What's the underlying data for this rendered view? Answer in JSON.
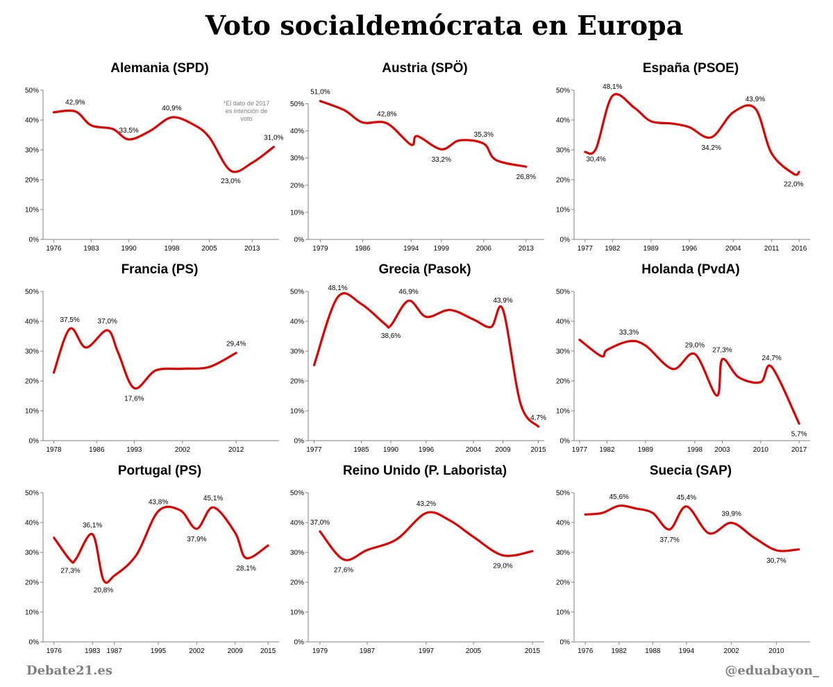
{
  "title": "Voto socialdemócrata en Europa",
  "footer": {
    "left": "Debate21.es",
    "right": "@eduabayon_"
  },
  "line_color": "#e00000",
  "chart_data": [
    {
      "type": "line",
      "title": "Alemania (SPD)",
      "ylim": [
        0,
        50
      ],
      "y_ticks": [
        "0%",
        "10%",
        "20%",
        "30%",
        "40%",
        "50%"
      ],
      "xlim": [
        1974,
        2018
      ],
      "x_ticks": [
        "1976",
        "1983",
        "1990",
        "1998",
        "2005",
        "2013"
      ],
      "x_tick_values": [
        1976,
        1983,
        1990,
        1998,
        2005,
        2013
      ],
      "x": [
        1976,
        1980,
        1983,
        1987,
        1990,
        1994,
        1998,
        2002,
        2005,
        2009,
        2013,
        2017
      ],
      "y": [
        42.6,
        42.9,
        38.2,
        37.0,
        33.5,
        36.4,
        40.9,
        38.5,
        34.2,
        23.0,
        25.7,
        31.0
      ],
      "labels": [
        {
          "idx": 1,
          "text": "42,9%",
          "pos": "above"
        },
        {
          "idx": 4,
          "text": "33,5%",
          "pos": "above"
        },
        {
          "idx": 6,
          "text": "40,9%",
          "pos": "above"
        },
        {
          "idx": 9,
          "text": "23,0%",
          "pos": "below"
        },
        {
          "idx": 11,
          "text": "31,0%",
          "pos": "above"
        }
      ],
      "note": [
        "*El dato de 2017",
        "es intención  de",
        "voto"
      ]
    },
    {
      "type": "line",
      "title": "Austria (SPÖ)",
      "ylim": [
        0,
        55
      ],
      "y_ticks": [
        "0%",
        "10%",
        "20%",
        "30%",
        "40%",
        "50%"
      ],
      "xlim": [
        1977,
        2016
      ],
      "x_ticks": [
        "1979",
        "1986",
        "1994",
        "1999",
        "2006",
        "2013"
      ],
      "x_tick_values": [
        1979,
        1986,
        1994,
        1999,
        2006,
        2013
      ],
      "x": [
        1979,
        1983,
        1986,
        1990,
        1994,
        1995,
        1999,
        2002,
        2006,
        2008,
        2013
      ],
      "y": [
        51.0,
        47.6,
        43.1,
        42.8,
        34.9,
        38.1,
        33.2,
        36.5,
        35.3,
        29.3,
        26.8
      ],
      "labels": [
        {
          "idx": 0,
          "text": "51,0%",
          "pos": "above"
        },
        {
          "idx": 3,
          "text": "42,8%",
          "pos": "above"
        },
        {
          "idx": 6,
          "text": "33,2%",
          "pos": "below"
        },
        {
          "idx": 8,
          "text": "35,3%",
          "pos": "above"
        },
        {
          "idx": 10,
          "text": "26,8%",
          "pos": "below"
        }
      ]
    },
    {
      "type": "line",
      "title": "España (PSOE)",
      "ylim": [
        0,
        50
      ],
      "y_ticks": [
        "0%",
        "10%",
        "20%",
        "30%",
        "40%",
        "50%"
      ],
      "xlim": [
        1975,
        2018
      ],
      "x_ticks": [
        "1977",
        "1982",
        "1989",
        "1996",
        "2004",
        "2011",
        "2016"
      ],
      "x_tick_values": [
        1977,
        1982,
        1989,
        1996,
        2004,
        2011,
        2016
      ],
      "x": [
        1977,
        1979,
        1982,
        1986,
        1989,
        1993,
        1996,
        2000,
        2004,
        2008,
        2011,
        2015,
        2016
      ],
      "y": [
        29.3,
        30.4,
        48.1,
        44.1,
        39.6,
        38.8,
        37.6,
        34.2,
        42.6,
        43.9,
        28.8,
        22.0,
        22.6
      ],
      "labels": [
        {
          "idx": 1,
          "text": "30,4%",
          "pos": "below"
        },
        {
          "idx": 2,
          "text": "48,1%",
          "pos": "above"
        },
        {
          "idx": 7,
          "text": "34,2%",
          "pos": "below"
        },
        {
          "idx": 9,
          "text": "43,9%",
          "pos": "above"
        },
        {
          "idx": 11,
          "text": "22,0%",
          "pos": "below"
        }
      ]
    },
    {
      "type": "line",
      "title": "Francia (PS)",
      "ylim": [
        0,
        50
      ],
      "y_ticks": [
        "0%",
        "10%",
        "20%",
        "30%",
        "40%",
        "50%"
      ],
      "xlim": [
        1976,
        2020
      ],
      "x_ticks": [
        "1978",
        "1986",
        "1993",
        "2002",
        "2012"
      ],
      "x_tick_values": [
        1978,
        1986,
        1993,
        2002,
        2012
      ],
      "x": [
        1978,
        1981,
        1984,
        1988,
        1990,
        1993,
        1997,
        2002,
        2007,
        2012
      ],
      "y": [
        22.8,
        37.5,
        31.2,
        37.0,
        29.5,
        17.6,
        23.5,
        24.1,
        24.7,
        29.4
      ],
      "labels": [
        {
          "idx": 1,
          "text": "37,5%",
          "pos": "above"
        },
        {
          "idx": 3,
          "text": "37,0%",
          "pos": "above"
        },
        {
          "idx": 5,
          "text": "17,6%",
          "pos": "below"
        },
        {
          "idx": 9,
          "text": "29,4%",
          "pos": "above"
        }
      ]
    },
    {
      "type": "line",
      "title": "Grecia (Pasok)",
      "ylim": [
        0,
        50
      ],
      "y_ticks": [
        "0%",
        "10%",
        "20%",
        "30%",
        "40%",
        "50%"
      ],
      "xlim": [
        1976,
        2016
      ],
      "x_ticks": [
        "1977",
        "1985",
        "1990",
        "1996",
        "2004",
        "2009",
        "2015"
      ],
      "x_tick_values": [
        1977,
        1985,
        1990,
        1996,
        2004,
        2009,
        2015
      ],
      "x": [
        1977,
        1981,
        1985,
        1989,
        1990,
        1993,
        1996,
        2000,
        2004,
        2007,
        2009,
        2012,
        2015
      ],
      "y": [
        25.3,
        48.1,
        45.8,
        39.1,
        38.6,
        46.9,
        41.5,
        43.8,
        40.6,
        38.1,
        43.9,
        12.3,
        4.7
      ],
      "labels": [
        {
          "idx": 1,
          "text": "48,1%",
          "pos": "above"
        },
        {
          "idx": 4,
          "text": "38,6%",
          "pos": "below"
        },
        {
          "idx": 5,
          "text": "46,9%",
          "pos": "above"
        },
        {
          "idx": 10,
          "text": "43,9%",
          "pos": "above"
        },
        {
          "idx": 12,
          "text": "4,7%",
          "pos": "above"
        }
      ]
    },
    {
      "type": "line",
      "title": "Holanda (PvdA)",
      "ylim": [
        0,
        50
      ],
      "y_ticks": [
        "0%",
        "10%",
        "20%",
        "30%",
        "40%",
        "50%"
      ],
      "xlim": [
        1976,
        2019
      ],
      "x_ticks": [
        "1977",
        "1982",
        "1989",
        "1998",
        "2003",
        "2010",
        "2017"
      ],
      "x_tick_values": [
        1977,
        1982,
        1989,
        1998,
        2003,
        2010,
        2017
      ],
      "x": [
        1977,
        1981,
        1982,
        1986,
        1989,
        1994,
        1998,
        2002,
        2003,
        2006,
        2010,
        2012,
        2017
      ],
      "y": [
        33.8,
        28.3,
        30.4,
        33.3,
        31.9,
        24.0,
        29.0,
        15.1,
        27.3,
        21.2,
        19.6,
        24.7,
        5.7
      ],
      "labels": [
        {
          "idx": 3,
          "text": "33,3%",
          "pos": "above"
        },
        {
          "idx": 6,
          "text": "29,0%",
          "pos": "above"
        },
        {
          "idx": 8,
          "text": "27,3%",
          "pos": "above"
        },
        {
          "idx": 11,
          "text": "24,7%",
          "pos": "above"
        },
        {
          "idx": 12,
          "text": "5,7%",
          "pos": "below"
        }
      ]
    },
    {
      "type": "line",
      "title": "Portugal (PS)",
      "ylim": [
        0,
        50
      ],
      "y_ticks": [
        "0%",
        "10%",
        "20%",
        "30%",
        "40%",
        "50%"
      ],
      "xlim": [
        1974,
        2017
      ],
      "x_ticks": [
        "1976",
        "1983",
        "1987",
        "1995",
        "2002",
        "2009",
        "2015"
      ],
      "x_tick_values": [
        1976,
        1983,
        1987,
        1995,
        2002,
        2009,
        2015
      ],
      "x": [
        1976,
        1979,
        1980,
        1983,
        1985,
        1987,
        1991,
        1995,
        1999,
        2002,
        2005,
        2009,
        2011,
        2015
      ],
      "y": [
        34.9,
        27.3,
        27.8,
        36.1,
        20.8,
        22.2,
        29.1,
        43.8,
        44.1,
        37.9,
        45.1,
        36.6,
        28.1,
        32.3
      ],
      "labels": [
        {
          "idx": 1,
          "text": "27,3%",
          "pos": "below"
        },
        {
          "idx": 3,
          "text": "36,1%",
          "pos": "above"
        },
        {
          "idx": 4,
          "text": "20,8%",
          "pos": "below"
        },
        {
          "idx": 7,
          "text": "43,8%",
          "pos": "above"
        },
        {
          "idx": 9,
          "text": "37,9%",
          "pos": "below"
        },
        {
          "idx": 10,
          "text": "45,1%",
          "pos": "above"
        },
        {
          "idx": 12,
          "text": "28,1%",
          "pos": "below"
        }
      ]
    },
    {
      "type": "line",
      "title": "Reino Unido (P. Laborista)",
      "ylim": [
        0,
        50
      ],
      "y_ticks": [
        "0%",
        "10%",
        "20%",
        "30%",
        "40%",
        "50%"
      ],
      "xlim": [
        1977,
        2017
      ],
      "x_ticks": [
        "1979",
        "1987",
        "1997",
        "2005",
        "2015"
      ],
      "x_tick_values": [
        1979,
        1987,
        1997,
        2005,
        2015
      ],
      "x": [
        1979,
        1983,
        1987,
        1992,
        1997,
        2001,
        2005,
        2010,
        2015
      ],
      "y": [
        37.0,
        27.6,
        30.8,
        34.4,
        43.2,
        40.7,
        35.2,
        29.0,
        30.4
      ],
      "labels": [
        {
          "idx": 0,
          "text": "37,0%",
          "pos": "above"
        },
        {
          "idx": 1,
          "text": "27,6%",
          "pos": "below"
        },
        {
          "idx": 4,
          "text": "43,2%",
          "pos": "above"
        },
        {
          "idx": 7,
          "text": "29,0%",
          "pos": "below"
        }
      ]
    },
    {
      "type": "line",
      "title": "Suecia (SAP)",
      "ylim": [
        0,
        50
      ],
      "y_ticks": [
        "0%",
        "10%",
        "20%",
        "30%",
        "40%",
        "50%"
      ],
      "xlim": [
        1974,
        2016
      ],
      "x_ticks": [
        "1976",
        "1982",
        "1988",
        "1994",
        "2002",
        "2010"
      ],
      "x_tick_values": [
        1976,
        1982,
        1988,
        1994,
        2002,
        2010
      ],
      "x": [
        1976,
        1979,
        1982,
        1985,
        1988,
        1991,
        1994,
        1998,
        2002,
        2006,
        2010,
        2014
      ],
      "y": [
        42.7,
        43.2,
        45.6,
        44.7,
        43.2,
        37.7,
        45.4,
        36.4,
        39.9,
        35.0,
        30.7,
        31.0
      ],
      "labels": [
        {
          "idx": 2,
          "text": "45,6%",
          "pos": "above"
        },
        {
          "idx": 5,
          "text": "37,7%",
          "pos": "below"
        },
        {
          "idx": 6,
          "text": "45,4%",
          "pos": "above"
        },
        {
          "idx": 8,
          "text": "39,9%",
          "pos": "above"
        },
        {
          "idx": 10,
          "text": "30,7%",
          "pos": "below"
        }
      ]
    }
  ]
}
